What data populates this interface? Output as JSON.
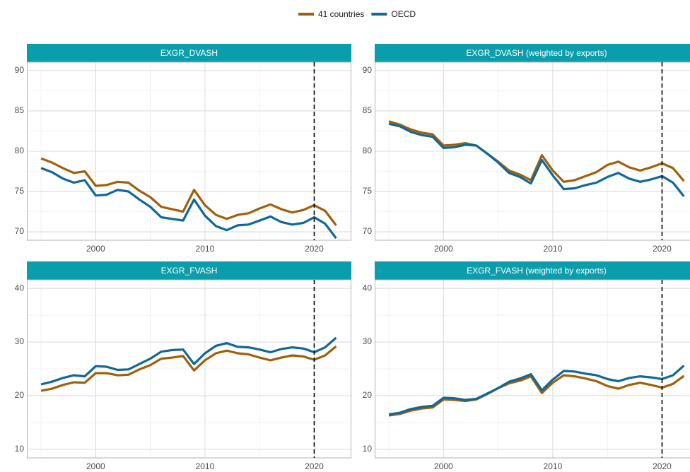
{
  "chart_data": [
    {
      "type": "line",
      "title": "EXGR_DVASH",
      "x": [
        1995,
        1996,
        1997,
        1998,
        1999,
        2000,
        2001,
        2002,
        2003,
        2004,
        2005,
        2006,
        2007,
        2008,
        2009,
        2010,
        2011,
        2012,
        2013,
        2014,
        2015,
        2016,
        2017,
        2018,
        2019,
        2020,
        2021,
        2022
      ],
      "series": [
        {
          "name": "41 countries",
          "color": "#a0600a",
          "values": [
            79.1,
            78.6,
            77.9,
            77.3,
            77.5,
            75.7,
            75.8,
            76.2,
            76.1,
            75.1,
            74.3,
            73.1,
            72.8,
            72.5,
            75.2,
            73.3,
            72.1,
            71.6,
            72.1,
            72.3,
            72.9,
            73.4,
            72.8,
            72.4,
            72.7,
            73.3,
            72.6,
            70.8
          ]
        },
        {
          "name": "OECD",
          "color": "#0f679a",
          "values": [
            77.9,
            77.4,
            76.6,
            76.1,
            76.4,
            74.5,
            74.6,
            75.2,
            75.0,
            74.0,
            73.1,
            71.8,
            71.6,
            71.4,
            74.0,
            72.0,
            70.7,
            70.2,
            70.8,
            70.9,
            71.4,
            71.9,
            71.2,
            70.9,
            71.1,
            71.8,
            71.0,
            69.2
          ]
        }
      ],
      "xlim": [
        1993.7,
        2023.4
      ],
      "xticks": [
        2000,
        2010,
        2020
      ],
      "ylim": [
        68.95,
        91.05
      ],
      "yticks": [
        70,
        75,
        80,
        85,
        90
      ],
      "vline": 2020,
      "grid": true
    },
    {
      "type": "line",
      "title": "EXGR_DVASH (weighted by exports)",
      "x": [
        1995,
        1996,
        1997,
        1998,
        1999,
        2000,
        2001,
        2002,
        2003,
        2004,
        2005,
        2006,
        2007,
        2008,
        2009,
        2010,
        2011,
        2012,
        2013,
        2014,
        2015,
        2016,
        2017,
        2018,
        2019,
        2020,
        2021,
        2022
      ],
      "series": [
        {
          "name": "41 countries",
          "color": "#a0600a",
          "values": [
            83.7,
            83.3,
            82.7,
            82.3,
            82.1,
            80.7,
            80.8,
            81.0,
            80.7,
            79.7,
            78.7,
            77.6,
            77.1,
            76.4,
            79.5,
            77.6,
            76.2,
            76.4,
            76.9,
            77.4,
            78.3,
            78.7,
            78.0,
            77.6,
            78.0,
            78.5,
            77.9,
            76.3
          ]
        },
        {
          "name": "OECD",
          "color": "#0f679a",
          "values": [
            83.4,
            83.1,
            82.4,
            82.0,
            81.8,
            80.4,
            80.5,
            80.8,
            80.7,
            79.7,
            78.6,
            77.3,
            76.8,
            76.0,
            78.9,
            77.0,
            75.3,
            75.4,
            75.8,
            76.1,
            76.8,
            77.3,
            76.6,
            76.2,
            76.5,
            76.9,
            76.1,
            74.4
          ]
        }
      ],
      "xlim": [
        1993.7,
        2023.4
      ],
      "xticks": [
        2000,
        2010,
        2020
      ],
      "ylim": [
        68.95,
        91.05
      ],
      "yticks": [
        70,
        75,
        80,
        85,
        90
      ],
      "vline": 2020,
      "grid": true
    },
    {
      "type": "line",
      "title": "EXGR_FVASH",
      "x": [
        1995,
        1996,
        1997,
        1998,
        1999,
        2000,
        2001,
        2002,
        2003,
        2004,
        2005,
        2006,
        2007,
        2008,
        2009,
        2010,
        2011,
        2012,
        2013,
        2014,
        2015,
        2016,
        2017,
        2018,
        2019,
        2020,
        2021,
        2022
      ],
      "series": [
        {
          "name": "41 countries",
          "color": "#a0600a",
          "values": [
            20.9,
            21.3,
            22.0,
            22.5,
            22.4,
            24.2,
            24.2,
            23.8,
            23.9,
            24.9,
            25.7,
            26.9,
            27.1,
            27.4,
            24.7,
            26.6,
            27.9,
            28.4,
            27.9,
            27.7,
            27.1,
            26.6,
            27.1,
            27.5,
            27.3,
            26.7,
            27.5,
            29.2
          ]
        },
        {
          "name": "OECD",
          "color": "#0f679a",
          "values": [
            22.1,
            22.6,
            23.3,
            23.8,
            23.6,
            25.5,
            25.4,
            24.8,
            24.9,
            25.9,
            26.9,
            28.2,
            28.5,
            28.6,
            25.9,
            27.9,
            29.3,
            29.8,
            29.1,
            29.0,
            28.6,
            28.1,
            28.7,
            29.0,
            28.8,
            28.1,
            29.0,
            30.8
          ]
        }
      ],
      "xlim": [
        1993.7,
        2023.4
      ],
      "xticks": [
        2000,
        2010,
        2020
      ],
      "ylim": [
        8.4,
        41.6
      ],
      "yticks": [
        10,
        20,
        30,
        40
      ],
      "vline": 2020,
      "grid": true
    },
    {
      "type": "line",
      "title": "EXGR_FVASH (weighted by exports)",
      "x": [
        1995,
        1996,
        1997,
        1998,
        1999,
        2000,
        2001,
        2002,
        2003,
        2004,
        2005,
        2006,
        2007,
        2008,
        2009,
        2010,
        2011,
        2012,
        2013,
        2014,
        2015,
        2016,
        2017,
        2018,
        2019,
        2020,
        2021,
        2022
      ],
      "series": [
        {
          "name": "41 countries",
          "color": "#a0600a",
          "values": [
            16.3,
            16.6,
            17.2,
            17.6,
            17.8,
            19.3,
            19.2,
            19.0,
            19.3,
            20.3,
            21.4,
            22.3,
            22.8,
            23.6,
            20.5,
            22.4,
            23.8,
            23.6,
            23.2,
            22.7,
            21.8,
            21.3,
            22.0,
            22.4,
            22.0,
            21.5,
            22.2,
            23.7
          ]
        },
        {
          "name": "OECD",
          "color": "#0f679a",
          "values": [
            16.5,
            16.8,
            17.5,
            17.9,
            18.1,
            19.6,
            19.5,
            19.2,
            19.4,
            20.4,
            21.4,
            22.6,
            23.2,
            24.0,
            21.0,
            23.0,
            24.6,
            24.5,
            24.1,
            23.8,
            23.1,
            22.7,
            23.3,
            23.6,
            23.4,
            23.1,
            23.8,
            25.6
          ]
        }
      ],
      "xlim": [
        1993.7,
        2023.4
      ],
      "xticks": [
        2000,
        2010,
        2020
      ],
      "ylim": [
        8.4,
        41.6
      ],
      "yticks": [
        10,
        20,
        30,
        40
      ],
      "vline": 2020,
      "grid": true
    }
  ]
}
